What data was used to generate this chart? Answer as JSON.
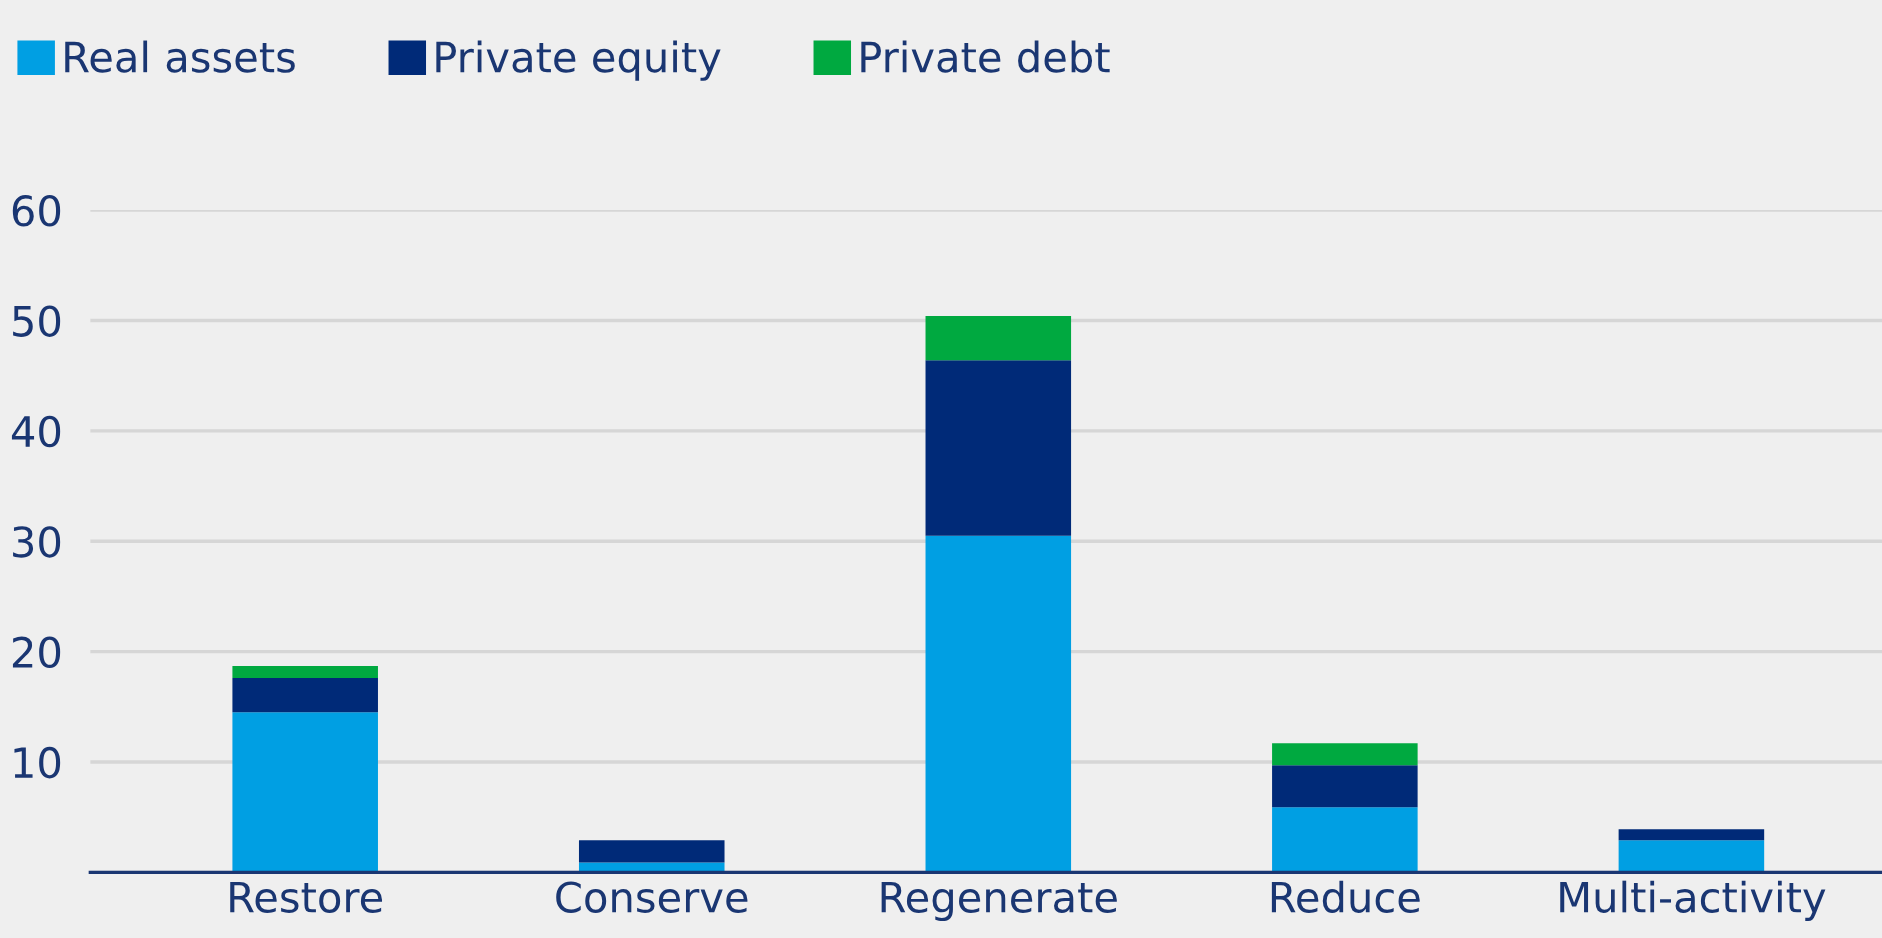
{
  "chart_data": {
    "type": "bar",
    "stacked": true,
    "categories": [
      "Restore",
      "Conserve",
      "Regenerate",
      "Reduce",
      "Multi-activity"
    ],
    "series": [
      {
        "name": "Real assets",
        "color": "#009fe3",
        "values": [
          14.5,
          0.9,
          30.5,
          5.9,
          2.9
        ]
      },
      {
        "name": "Private equity",
        "color": "#002a78",
        "values": [
          3.1,
          2.0,
          15.9,
          3.8,
          1.0
        ]
      },
      {
        "name": "Private debt",
        "color": "#00a940",
        "values": [
          1.1,
          null,
          4.0,
          2.0,
          null
        ]
      }
    ],
    "ylim": [
      0,
      60
    ],
    "yticks": [
      {
        "value": 0,
        "label": null
      },
      10,
      20,
      30,
      40,
      50,
      60
    ],
    "grid": "y",
    "legend": "top left"
  }
}
